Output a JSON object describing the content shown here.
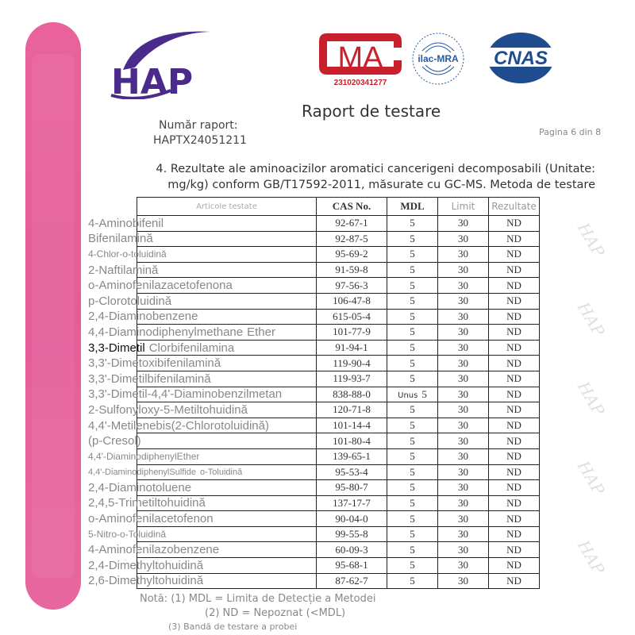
{
  "logos": {
    "hap": "HAP",
    "cma": "MA",
    "cma_number": "231020341277",
    "ilac": "ilac-MRA",
    "cnas": "CNAS"
  },
  "watermark": "HAP",
  "report": {
    "number_label": "Număr raport:",
    "number_value": "HAPTX24051211",
    "title": "Raport de testare",
    "page": "Pagina 6 din 8",
    "heading": "4. Rezultate ale aminoacizilor aromatici cancerigeni decomposabili (Unitate: mg/kg) conform GB/T17592-2011, măsurate cu GC-MS. Metoda de testare"
  },
  "colors": {
    "accent_pink": "#e8619c",
    "hap_purple": "#4a2a8a",
    "cma_red": "#c8202c",
    "cnas_blue": "#1f4b8f"
  },
  "table": {
    "headers": [
      "Articole testate",
      "CAS No.",
      "MDL",
      "Limit",
      "Rezultate"
    ],
    "rows": [
      [
        "92-67-1",
        "5",
        "30",
        "ND"
      ],
      [
        "92-87-5",
        "5",
        "30",
        "ND"
      ],
      [
        "95-69-2",
        "5",
        "30",
        "ND"
      ],
      [
        "91-59-8",
        "5",
        "30",
        "ND"
      ],
      [
        "97-56-3",
        "5",
        "30",
        "ND"
      ],
      [
        "106-47-8",
        "5",
        "30",
        "ND"
      ],
      [
        "615-05-4",
        "5",
        "30",
        "ND"
      ],
      [
        "101-77-9",
        "5",
        "30",
        "ND"
      ],
      [
        "91-94-1",
        "5",
        "30",
        "ND"
      ],
      [
        "119-90-4",
        "5",
        "30",
        "ND"
      ],
      [
        "119-93-7",
        "5",
        "30",
        "ND"
      ],
      [
        "838-88-0",
        "5",
        "30",
        "ND"
      ],
      [
        "120-71-8",
        "5",
        "30",
        "ND"
      ],
      [
        "101-14-4",
        "5",
        "30",
        "ND"
      ],
      [
        "101-80-4",
        "5",
        "30",
        "ND"
      ],
      [
        "139-65-1",
        "5",
        "30",
        "ND"
      ],
      [
        "95-53-4",
        "5",
        "30",
        "ND"
      ],
      [
        "95-80-7",
        "5",
        "30",
        "ND"
      ],
      [
        "137-17-7",
        "5",
        "30",
        "ND"
      ],
      [
        "90-04-0",
        "5",
        "30",
        "ND"
      ],
      [
        "99-55-8",
        "5",
        "30",
        "ND"
      ],
      [
        "60-09-3",
        "5",
        "30",
        "ND"
      ],
      [
        "95-68-1",
        "5",
        "30",
        "ND"
      ],
      [
        "87-62-7",
        "5",
        "30",
        "ND"
      ]
    ],
    "overlay_text": "Unus",
    "item_labels": [
      "4-Aminobifenil",
      "Bifenilamină",
      "4-Chlor-o-toluidină",
      "2-Naftilamină",
      "o-Aminofenilazacetofenona",
      "p-Clorotoluidină",
      "2,4-Diaminobenzene",
      "Ether",
      "4,4-Diaminodiphenylmethane",
      "3,3-Dimetil",
      "Clorbifenilamina",
      "3,3'-Dimetoxibifenilamină",
      "3,3'-Dimetilbifenilamină",
      "3,3'-Dimetil-4,4'-Diaminobenzilmetan",
      "2-Sulfonyloxy-5-Metiltohuidină",
      "4,4'-Metilenebis(2-Chlorotoluidină)",
      "(p-Cresol)",
      "4,4'-DiaminodiphenylEther",
      "4,4'-DiaminodiphenylSulfide",
      "o-Toluidină",
      "2,4-Diaminotoluene",
      "2,4,5-Trimetiltohuidină",
      "o-Aminofenilacetofenon",
      "5-Nitro-o-Toluidină",
      "4-Aminofenilazobenzene",
      "2,4-Dimethyltohuidină",
      "2,6-Dimethyltohuidină"
    ]
  },
  "notes": [
    "Notă: (1) MDL = Limita de Detecție a Metodei",
    "(2) ND = Nepoznat (<MDL)",
    "(3) Bandă de testare a probei"
  ]
}
